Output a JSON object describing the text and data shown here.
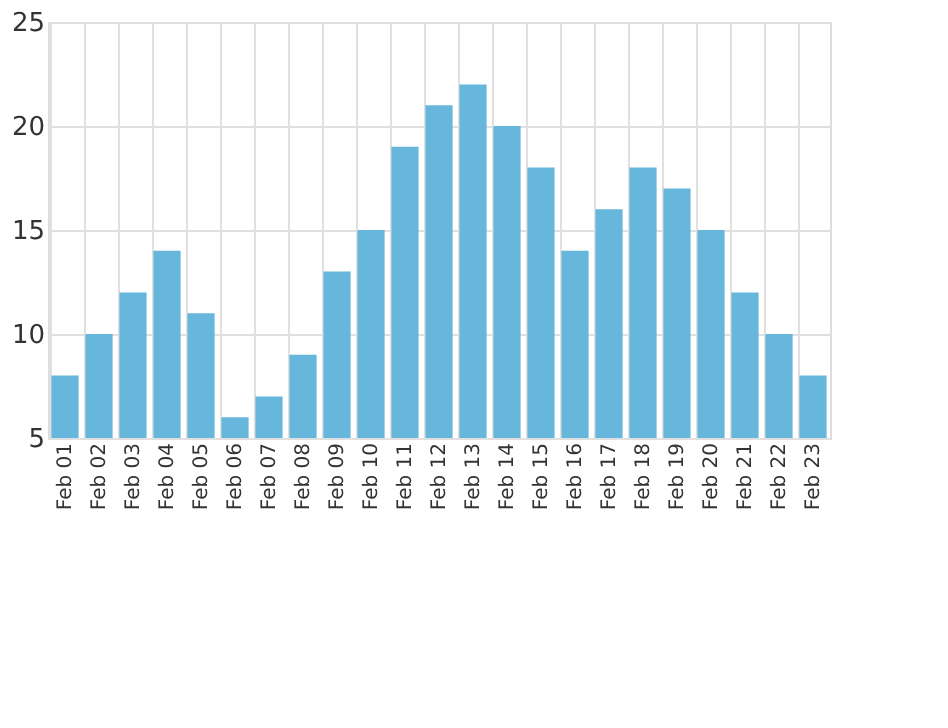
{
  "chart_data": {
    "type": "bar",
    "categories": [
      "Feb 01",
      "Feb 02",
      "Feb 03",
      "Feb 04",
      "Feb 05",
      "Feb 06",
      "Feb 07",
      "Feb 08",
      "Feb 09",
      "Feb 10",
      "Feb 11",
      "Feb 12",
      "Feb 13",
      "Feb 14",
      "Feb 15",
      "Feb 16",
      "Feb 17",
      "Feb 18",
      "Feb 19",
      "Feb 20",
      "Feb 21",
      "Feb 22",
      "Feb 23"
    ],
    "values": [
      8,
      10,
      12,
      14,
      11,
      6,
      7,
      9,
      13,
      15,
      19,
      21,
      22,
      20,
      18,
      14,
      16,
      18,
      17,
      15,
      12,
      10,
      8
    ],
    "color": "#67b7dc",
    "ylim": [
      5,
      25
    ],
    "yticks": [
      5,
      10,
      15,
      20,
      25
    ],
    "grid": true
  }
}
